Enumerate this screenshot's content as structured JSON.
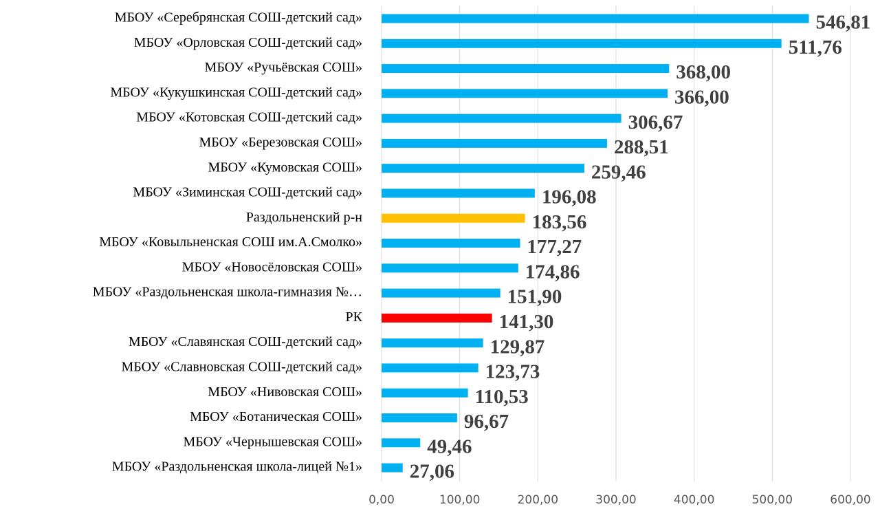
{
  "chart_data": {
    "type": "barh",
    "categories": [
      "МБОУ «Серебрянская СОШ-детский сад»",
      "МБОУ «Орловская СОШ-детский сад»",
      "МБОУ «Ручьёвская СОШ»",
      "МБОУ «Кукушкинская СОШ-детский сад»",
      "МБОУ «Котовская СОШ-детский сад»",
      "МБОУ «Березовская СОШ»",
      "МБОУ «Кумовская СОШ»",
      "МБОУ «Зиминская СОШ-детский сад»",
      "Раздольненский р-н",
      "МБОУ «Ковыльненская СОШ им.А.Смолко»",
      "МБОУ «Новосёловская СОШ»",
      "МБОУ «Раздольненская школа-гимназия №…",
      "РК",
      "МБОУ «Славянская СОШ-детский сад»",
      "МБОУ «Славновская СОШ-детский сад»",
      "МБОУ «Нивовская СОШ»",
      "МБОУ «Ботаническая СОШ»",
      "МБОУ «Чернышевская СОШ»",
      "МБОУ «Раздольненская школа-лицей №1»"
    ],
    "values": [
      546.81,
      511.76,
      368.0,
      366.0,
      306.67,
      288.51,
      259.46,
      196.08,
      183.56,
      177.27,
      174.86,
      151.9,
      141.3,
      129.87,
      123.73,
      110.53,
      96.67,
      49.46,
      27.06
    ],
    "value_labels": [
      "546,81",
      "511,76",
      "368,00",
      "366,00",
      "306,67",
      "288,51",
      "259,46",
      "196,08",
      "183,56",
      "177,27",
      "174,86",
      "151,90",
      "141,30",
      "129,87",
      "123,73",
      "110,53",
      "96,67",
      "49,46",
      "27,06"
    ],
    "colors": [
      "#00b0f0",
      "#00b0f0",
      "#00b0f0",
      "#00b0f0",
      "#00b0f0",
      "#00b0f0",
      "#00b0f0",
      "#00b0f0",
      "#ffc000",
      "#00b0f0",
      "#00b0f0",
      "#00b0f0",
      "#ff0000",
      "#00b0f0",
      "#00b0f0",
      "#00b0f0",
      "#00b0f0",
      "#00b0f0",
      "#00b0f0"
    ],
    "xlim": [
      0,
      600
    ],
    "xticks": [
      {
        "value": 0,
        "label": "0,00"
      },
      {
        "value": 100,
        "label": "100,00"
      },
      {
        "value": 200,
        "label": "200,00"
      },
      {
        "value": 300,
        "label": "300,00"
      },
      {
        "value": 400,
        "label": "400,00"
      },
      {
        "value": 500,
        "label": "500,00"
      },
      {
        "value": 600,
        "label": "600,00"
      }
    ],
    "grid": true
  }
}
